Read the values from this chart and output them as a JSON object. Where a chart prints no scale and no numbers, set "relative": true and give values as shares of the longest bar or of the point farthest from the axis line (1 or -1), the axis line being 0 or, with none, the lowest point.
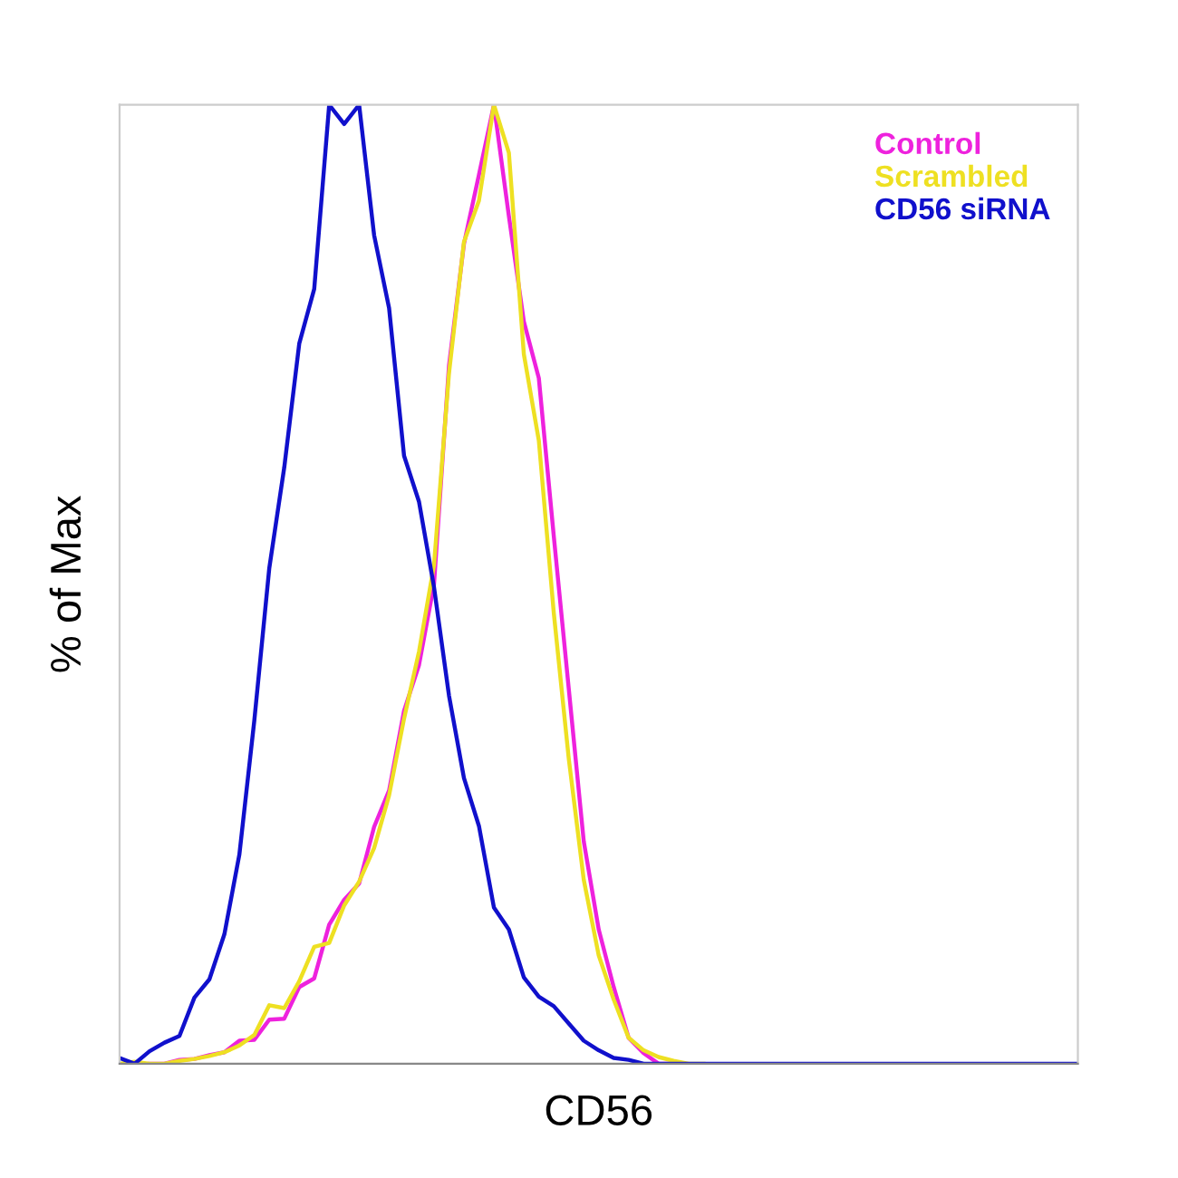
{
  "chart_data": {
    "type": "line",
    "relative": true,
    "xlabel": "CD56",
    "ylabel": "% of Max",
    "legend": "top right",
    "categories": [
      null,
      null,
      null,
      null,
      null,
      null,
      null,
      null,
      null,
      null,
      null,
      null,
      null,
      null,
      null,
      null,
      null,
      null,
      null,
      null,
      null,
      null,
      null,
      null,
      null,
      null,
      null,
      null,
      null,
      null,
      null,
      null,
      null,
      null,
      null,
      null,
      null,
      null,
      null,
      null,
      null,
      null,
      null,
      null,
      null,
      null,
      null,
      null,
      null,
      null,
      null,
      null,
      null,
      null,
      null,
      null,
      null,
      null,
      null,
      null,
      null,
      null,
      null,
      null,
      null
    ],
    "series": [
      {
        "name": "Control",
        "color": "#ee22dd",
        "values": [
          null,
          null,
          0,
          0,
          0.004,
          0.005,
          0.009,
          0.012,
          0.024,
          0.025,
          0.046,
          0.047,
          0.08,
          0.089,
          0.145,
          0.171,
          0.188,
          0.247,
          0.285,
          0.368,
          0.416,
          0.5,
          0.728,
          0.855,
          0.927,
          1.0,
          0.884,
          0.774,
          0.715,
          0.55,
          0.391,
          0.232,
          0.14,
          0.08,
          0.027,
          0.011,
          0,
          0,
          null,
          null,
          null,
          null,
          null,
          null,
          null,
          null,
          null,
          null,
          null,
          null,
          null,
          null,
          null,
          null,
          null,
          null,
          null,
          null,
          null,
          null,
          null,
          null,
          null,
          null,
          null
        ]
      },
      {
        "name": "Scrambled",
        "color": "#eee022",
        "values": [
          0,
          0.002,
          0,
          0,
          0.003,
          0.005,
          0.008,
          0.012,
          0.019,
          0.03,
          0.061,
          0.058,
          0.086,
          0.122,
          0.126,
          0.165,
          0.19,
          0.225,
          0.28,
          0.36,
          0.43,
          0.52,
          0.72,
          0.857,
          0.9,
          1.0,
          0.95,
          0.74,
          0.65,
          0.47,
          0.318,
          0.192,
          0.113,
          0.067,
          0.027,
          0.014,
          0.007,
          0.003,
          0,
          0,
          null,
          null,
          null,
          null,
          null,
          null,
          null,
          null,
          null,
          null,
          null,
          null,
          null,
          null,
          null,
          null,
          null,
          null,
          null,
          null,
          null,
          null,
          null,
          null,
          null
        ]
      },
      {
        "name": "CD56 siRNA",
        "color": "#1010cc",
        "values": [
          0.006,
          0,
          0.013,
          0.022,
          0.029,
          0.069,
          0.088,
          0.135,
          0.218,
          0.358,
          0.517,
          0.622,
          0.751,
          0.808,
          1.0,
          0.98,
          1.0,
          0.864,
          0.788,
          0.634,
          0.586,
          0.497,
          0.384,
          0.298,
          0.248,
          0.163,
          0.14,
          0.09,
          0.07,
          0.06,
          0.042,
          0.024,
          0.014,
          0.006,
          0.004,
          0,
          0,
          0,
          0,
          0,
          0,
          0,
          0,
          0,
          0,
          0,
          0,
          0,
          0,
          0,
          0,
          0,
          0,
          0,
          0,
          0,
          0,
          0,
          0,
          0,
          0,
          0,
          0,
          0,
          0
        ]
      }
    ]
  }
}
